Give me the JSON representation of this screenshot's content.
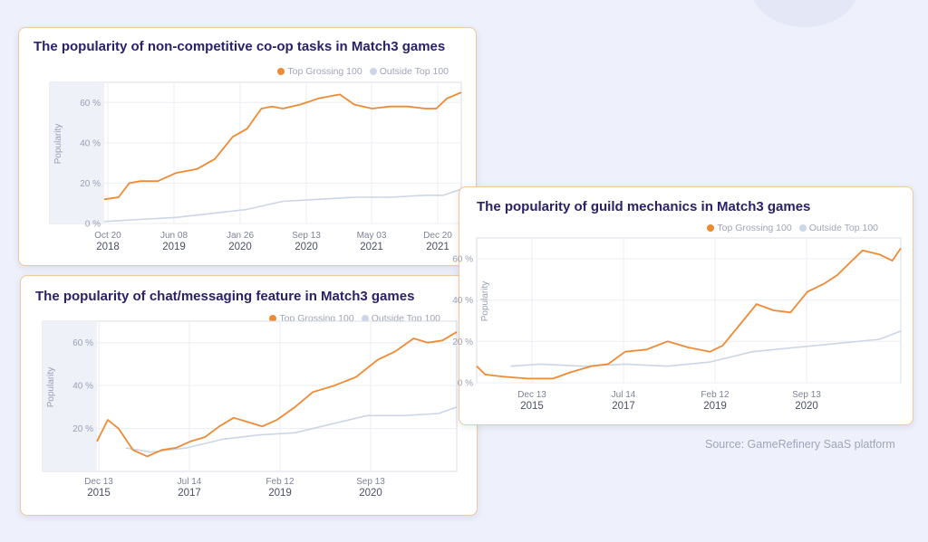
{
  "source": "Source: GameRefinery SaaS platform",
  "colors": {
    "top": "#ef8a34",
    "outside": "#cbd6e6"
  },
  "chart_data": [
    {
      "type": "line",
      "title": "The popularity of non-competitive co-op tasks in Match3 games",
      "ylabel": "Popularity",
      "ylim": [
        0,
        70
      ],
      "yticks": [
        "0 %",
        "20 %",
        "40 %",
        "60 %"
      ],
      "xticks": [
        {
          "month": "Oct 20",
          "year": "2018"
        },
        {
          "month": "Jun 08",
          "year": "2019"
        },
        {
          "month": "Jan 26",
          "year": "2020"
        },
        {
          "month": "Sep 13",
          "year": "2020"
        },
        {
          "month": "May 03",
          "year": "2021"
        },
        {
          "month": "Dec 20",
          "year": "2021"
        }
      ],
      "legend": [
        "Top Grossing 100",
        "Outside Top 100"
      ],
      "legend_position": "top-right",
      "grid": true,
      "series": [
        {
          "name": "Top Grossing 100",
          "color": "#ef8a34",
          "x": [
            0,
            0.04,
            0.07,
            0.1,
            0.15,
            0.2,
            0.26,
            0.31,
            0.36,
            0.4,
            0.44,
            0.47,
            0.5,
            0.55,
            0.6,
            0.66,
            0.7,
            0.75,
            0.8,
            0.85,
            0.9,
            0.93,
            0.96,
            1.0
          ],
          "y": [
            12,
            13,
            20,
            21,
            21,
            25,
            27,
            32,
            43,
            47,
            57,
            58,
            57,
            59,
            62,
            64,
            59,
            57,
            58,
            58,
            57,
            57,
            62,
            65
          ]
        },
        {
          "name": "Outside Top 100",
          "color": "#cbd6e6",
          "x": [
            0,
            0.1,
            0.2,
            0.3,
            0.4,
            0.5,
            0.6,
            0.7,
            0.8,
            0.9,
            0.95,
            1.0
          ],
          "y": [
            1,
            2,
            3,
            5,
            7,
            11,
            12,
            13,
            13,
            14,
            14,
            17
          ]
        }
      ]
    },
    {
      "type": "line",
      "title": "The popularity of guild mechanics  in Match3 games",
      "ylabel": "Popularity",
      "ylim": [
        0,
        70
      ],
      "yticks": [
        "0 %",
        "20 %",
        "40 %",
        "60 %"
      ],
      "xticks": [
        {
          "month": "Dec 13",
          "year": "2015"
        },
        {
          "month": "Jul 14",
          "year": "2017"
        },
        {
          "month": "Feb 12",
          "year": "2019"
        },
        {
          "month": "Sep 13",
          "year": "2020"
        }
      ],
      "legend": [
        "Top Grossing 100",
        "Outside Top 100"
      ],
      "legend_position": "top-right",
      "grid": true,
      "series": [
        {
          "name": "Top Grossing 100",
          "color": "#ef8a34",
          "x": [
            0,
            0.02,
            0.06,
            0.12,
            0.18,
            0.22,
            0.27,
            0.31,
            0.35,
            0.4,
            0.45,
            0.5,
            0.55,
            0.58,
            0.62,
            0.66,
            0.7,
            0.74,
            0.78,
            0.82,
            0.85,
            0.88,
            0.91,
            0.95,
            0.98,
            1.0
          ],
          "y": [
            8,
            4,
            3,
            2,
            2,
            5,
            8,
            9,
            15,
            16,
            20,
            17,
            15,
            18,
            28,
            38,
            35,
            34,
            44,
            48,
            52,
            58,
            64,
            62,
            59,
            65
          ]
        },
        {
          "name": "Outside Top 100",
          "color": "#cbd6e6",
          "x": [
            0.08,
            0.15,
            0.25,
            0.35,
            0.45,
            0.55,
            0.65,
            0.75,
            0.85,
            0.95,
            1.0
          ],
          "y": [
            8,
            9,
            8,
            9,
            8,
            10,
            15,
            17,
            19,
            21,
            25
          ]
        }
      ]
    },
    {
      "type": "line",
      "title": "The popularity of chat/messaging feature in Match3 games",
      "ylabel": "Popularity",
      "ylim": [
        0,
        70
      ],
      "yticks": [
        "20 %",
        "40 %",
        "60 %"
      ],
      "xticks": [
        {
          "month": "Dec 13",
          "year": "2015"
        },
        {
          "month": "Jul 14",
          "year": "2017"
        },
        {
          "month": "Feb 12",
          "year": "2019"
        },
        {
          "month": "Sep 13",
          "year": "2020"
        }
      ],
      "legend": [
        "Top Grossing 100",
        "Outside Top 100"
      ],
      "legend_position": "top-right",
      "grid": true,
      "series": [
        {
          "name": "Top Grossing 100",
          "color": "#ef8a34",
          "x": [
            0,
            0.03,
            0.06,
            0.1,
            0.14,
            0.18,
            0.22,
            0.26,
            0.3,
            0.34,
            0.38,
            0.42,
            0.46,
            0.5,
            0.55,
            0.6,
            0.66,
            0.72,
            0.78,
            0.83,
            0.88,
            0.92,
            0.96,
            1.0
          ],
          "y": [
            14,
            24,
            20,
            10,
            7,
            10,
            11,
            14,
            16,
            21,
            25,
            23,
            21,
            24,
            30,
            37,
            40,
            44,
            52,
            56,
            62,
            60,
            61,
            65
          ]
        },
        {
          "name": "Outside Top 100",
          "color": "#cbd6e6",
          "x": [
            0.08,
            0.15,
            0.25,
            0.35,
            0.45,
            0.55,
            0.65,
            0.75,
            0.85,
            0.95,
            1.0
          ],
          "y": [
            11,
            9,
            11,
            15,
            17,
            18,
            22,
            26,
            26,
            27,
            30
          ]
        }
      ]
    }
  ]
}
